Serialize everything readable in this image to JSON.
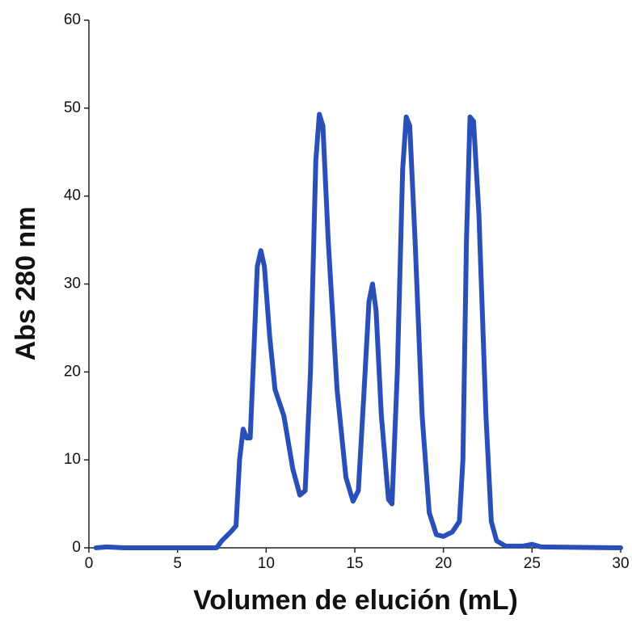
{
  "chart_data": {
    "type": "line",
    "xlabel": "Volumen de elución (mL)",
    "ylabel": "Abs 280 nm",
    "xlim": [
      0,
      30
    ],
    "xticks": [
      0,
      5,
      10,
      15,
      20,
      25,
      30
    ],
    "ylim": [
      0,
      60
    ],
    "yticks": [
      0,
      10,
      20,
      30,
      40,
      50,
      60
    ],
    "grid": false,
    "series": [
      {
        "color": "#2b4fb9",
        "x": [
          0.4,
          1,
          2,
          5,
          7.2,
          7.5,
          8,
          8.3,
          8.5,
          8.7,
          8.9,
          9.1,
          9.3,
          9.5,
          9.7,
          9.9,
          10.2,
          10.5,
          11,
          11.5,
          11.9,
          12.2,
          12.5,
          12.8,
          13,
          13.2,
          13.5,
          14,
          14.5,
          14.9,
          15.2,
          15.5,
          15.8,
          16,
          16.2,
          16.5,
          16.9,
          17.1,
          17.4,
          17.7,
          17.9,
          18.1,
          18.4,
          18.8,
          19.2,
          19.6,
          20,
          20.5,
          20.9,
          21.1,
          21.3,
          21.5,
          21.7,
          22,
          22.4,
          22.7,
          23,
          23.5,
          24.5,
          25,
          25.5,
          30
        ],
        "values": [
          0,
          0.1,
          0,
          0,
          0,
          0.8,
          1.8,
          2.5,
          10,
          13.5,
          12.5,
          12.5,
          22,
          32,
          33.8,
          32,
          24,
          18,
          15,
          9,
          6,
          6.5,
          20,
          44,
          49.3,
          48,
          35,
          18,
          8,
          5.3,
          6.5,
          17,
          28,
          30,
          27,
          15,
          5.5,
          5,
          20,
          43,
          49,
          48,
          35,
          15,
          4,
          1.5,
          1.3,
          1.8,
          3,
          10,
          35,
          49,
          48.5,
          38,
          15,
          3,
          0.8,
          0.2,
          0.2,
          0.4,
          0.1,
          0
        ]
      }
    ]
  }
}
